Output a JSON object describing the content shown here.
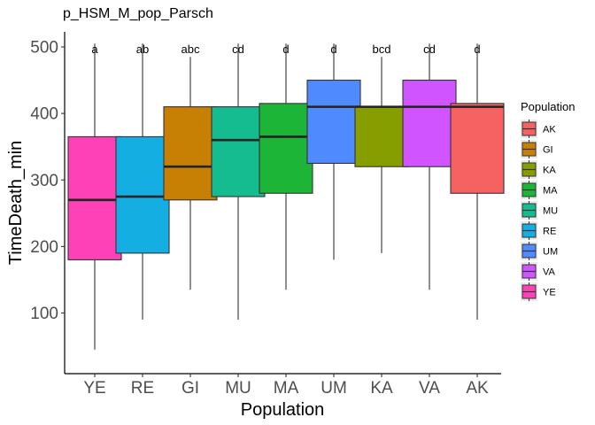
{
  "chart_data": {
    "type": "box",
    "title": "p_HSM_M_pop_Parsch",
    "xlabel": "Population",
    "ylabel": "TimeDeath_min",
    "ylim": [
      0,
      530
    ],
    "yticks": [
      100,
      200,
      300,
      400,
      500
    ],
    "grid": false,
    "legend": {
      "title": "Population",
      "placement": "right",
      "entries": [
        "AK",
        "GI",
        "KA",
        "MA",
        "MU",
        "RE",
        "UM",
        "VA",
        "YE"
      ]
    },
    "categories": [
      "YE",
      "RE",
      "GI",
      "MU",
      "MA",
      "UM",
      "KA",
      "VA",
      "AK"
    ],
    "boxes": [
      {
        "category": "YE",
        "min": 45,
        "q1": 180,
        "median": 270,
        "q3": 365,
        "max": 505,
        "letters": "a",
        "color": "#FF41B8"
      },
      {
        "category": "RE",
        "min": 90,
        "q1": 190,
        "median": 275,
        "q3": 365,
        "max": 505,
        "letters": "ab",
        "color": "#14AEE3"
      },
      {
        "category": "GI",
        "min": 135,
        "q1": 270,
        "median": 320,
        "q3": 410,
        "max": 485,
        "letters": "abc",
        "color": "#C88004"
      },
      {
        "category": "MU",
        "min": 90,
        "q1": 275,
        "median": 360,
        "q3": 410,
        "max": 505,
        "letters": "cd",
        "color": "#15BC8F"
      },
      {
        "category": "MA",
        "min": 135,
        "q1": 280,
        "median": 365,
        "q3": 415,
        "max": 505,
        "letters": "d",
        "color": "#1CB537"
      },
      {
        "category": "UM",
        "min": 180,
        "q1": 325,
        "median": 410,
        "q3": 450,
        "max": 505,
        "letters": "d",
        "color": "#4F8BFF"
      },
      {
        "category": "KA",
        "min": 190,
        "q1": 320,
        "median": 410,
        "q3": 410,
        "max": 485,
        "letters": "bcd",
        "color": "#879E00"
      },
      {
        "category": "VA",
        "min": 135,
        "q1": 320,
        "median": 410,
        "q3": 450,
        "max": 505,
        "letters": "cd",
        "color": "#D054FF"
      },
      {
        "category": "AK",
        "min": 90,
        "q1": 280,
        "median": 410,
        "q3": 415,
        "max": 505,
        "letters": "d",
        "color": "#F66262"
      }
    ]
  }
}
